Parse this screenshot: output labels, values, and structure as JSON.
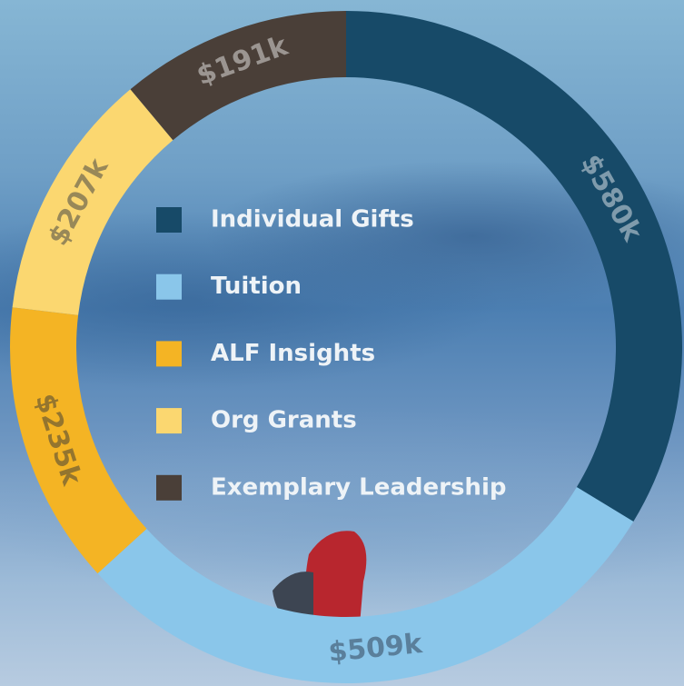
{
  "chart_data": {
    "type": "donut",
    "categories": [
      "Individual Gifts",
      "Tuition",
      "ALF Insights",
      "Org Grants",
      "Exemplary Leadership"
    ],
    "values": [
      580,
      509,
      235,
      207,
      191
    ],
    "value_labels": [
      "$580k",
      "$509k",
      "$235k",
      "$207k",
      "$191k"
    ],
    "colors": [
      "#174a68",
      "#8ac6ea",
      "#f4b424",
      "#fbd770",
      "#4a3f38"
    ]
  }
}
